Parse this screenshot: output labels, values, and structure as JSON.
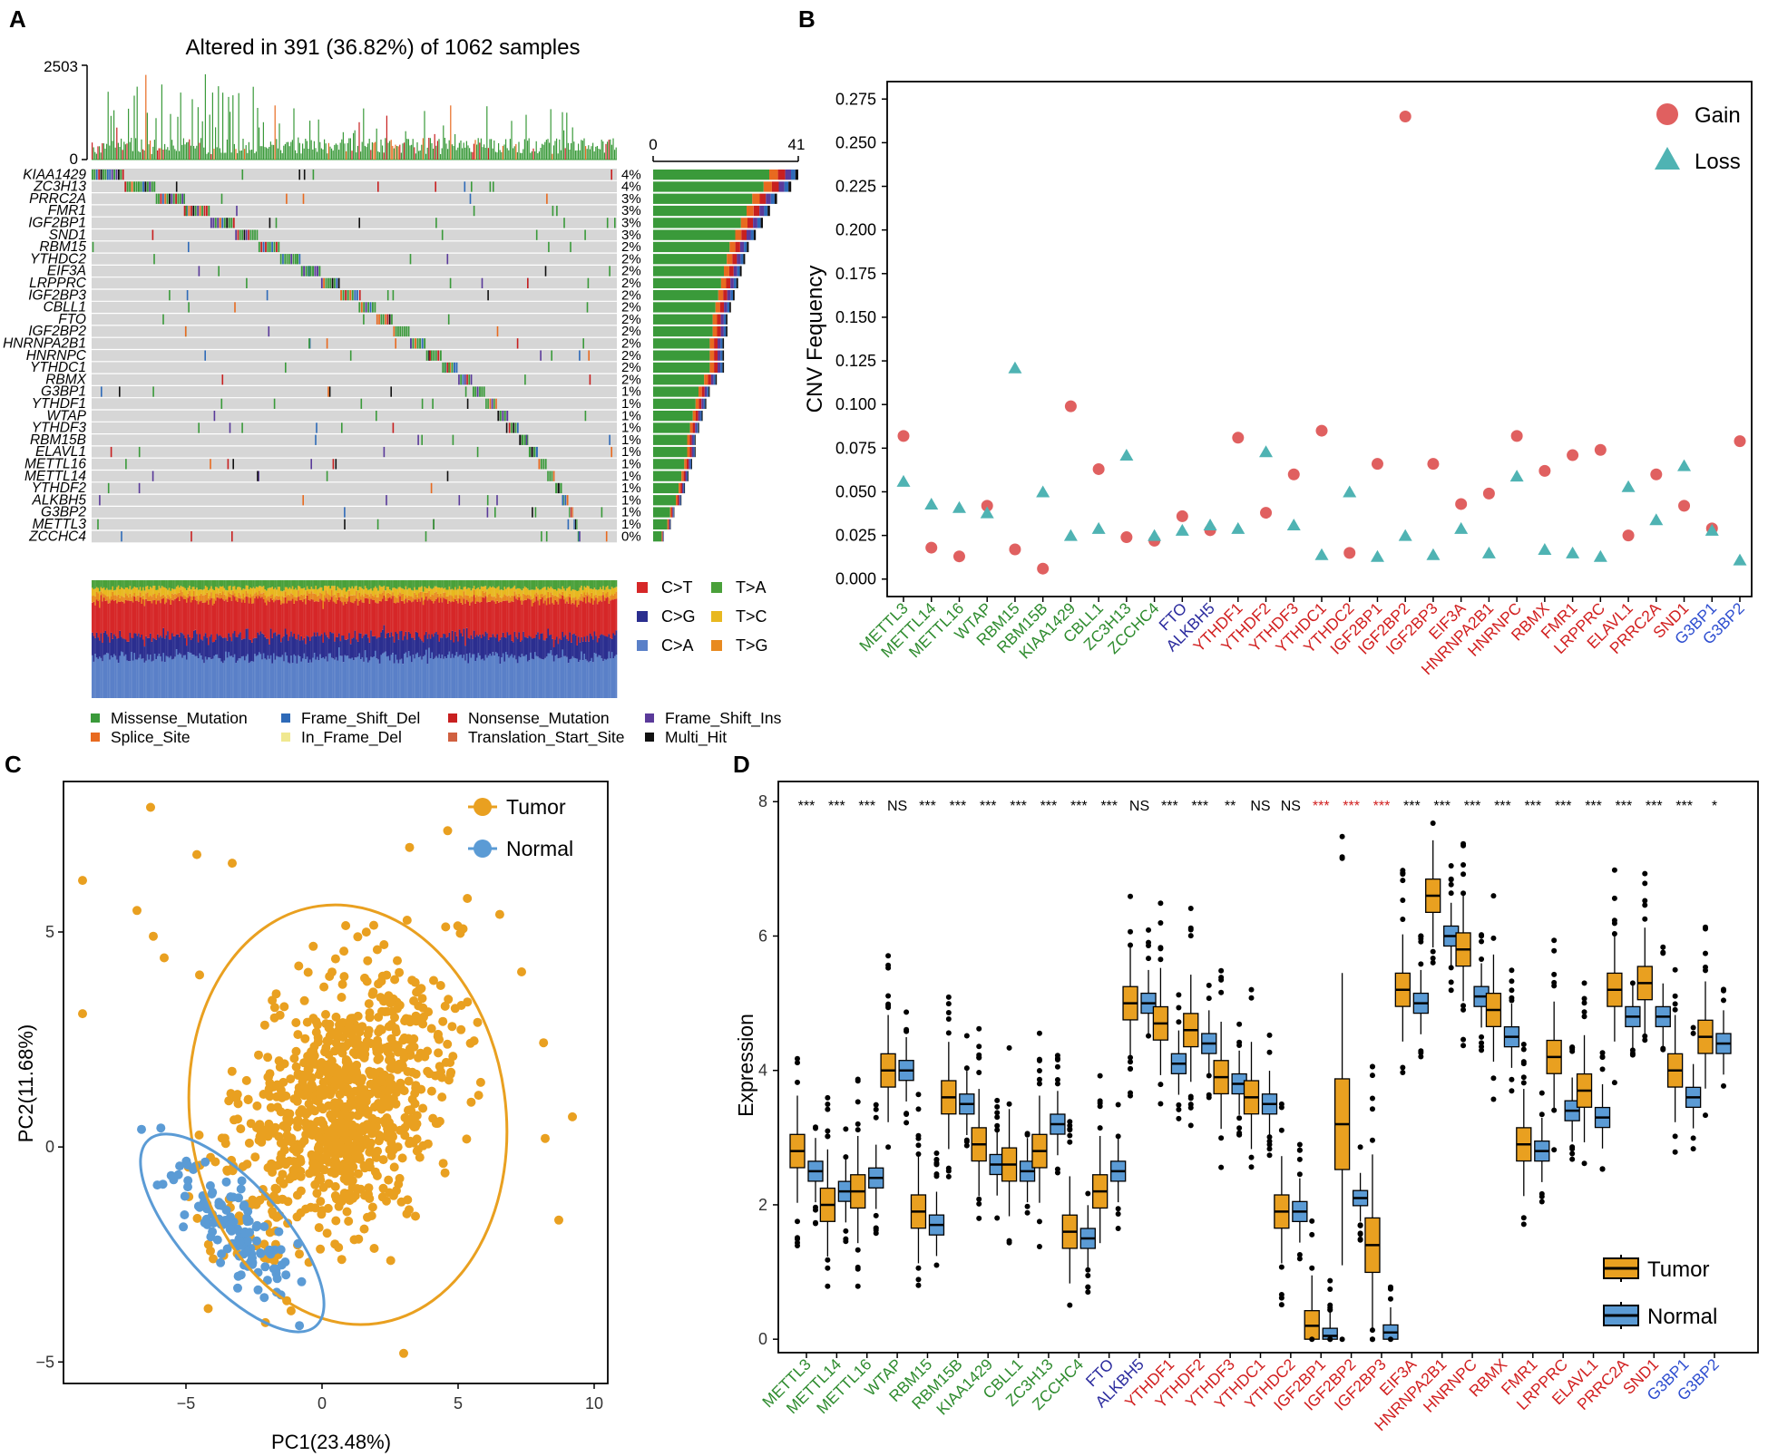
{
  "panels": {
    "a": "A",
    "b": "B",
    "c": "C",
    "d": "D"
  },
  "colors": {
    "green": "#2e8b2e",
    "blue_label": "#2b2b9e",
    "red_label": "#d11f1f",
    "blue_label2": "#2f4fd0",
    "tumor": "#e9a020",
    "normal": "#5b9bd5",
    "gain": "#e06060",
    "loss": "#4fb3b3"
  },
  "chart_data": [
    {
      "panel": "A",
      "type": "oncoplot",
      "title": "Altered in 391 (36.82%) of 1062 samples",
      "tmb_axis": {
        "max_label": "2503",
        "min_label": "0"
      },
      "count_axis": {
        "min_label": "0",
        "max_label": "41",
        "max": 41
      },
      "genes": [
        "KIAA1429",
        "ZC3H13",
        "PRRC2A",
        "FMR1",
        "IGF2BP1",
        "SND1",
        "RBM15",
        "YTHDC2",
        "EIF3A",
        "LRPPRC",
        "IGF2BP3",
        "CBLL1",
        "FTO",
        "IGF2BP2",
        "HNRNPA2B1",
        "HNRNPC",
        "YTHDC1",
        "RBMX",
        "G3BP1",
        "YTHDF1",
        "WTAP",
        "YTHDF3",
        "RBM15B",
        "ELAVL1",
        "METTL16",
        "METTL14",
        "YTHDF2",
        "ALKBH5",
        "G3BP2",
        "METTL3",
        "ZCCHC4"
      ],
      "percent": [
        "4%",
        "4%",
        "3%",
        "3%",
        "3%",
        "3%",
        "2%",
        "2%",
        "2%",
        "2%",
        "2%",
        "2%",
        "2%",
        "2%",
        "2%",
        "2%",
        "2%",
        "2%",
        "1%",
        "1%",
        "1%",
        "1%",
        "1%",
        "1%",
        "1%",
        "1%",
        "1%",
        "1%",
        "1%",
        "1%",
        "0%"
      ],
      "counts": [
        41,
        39,
        35,
        33,
        31,
        29,
        27,
        26,
        25,
        24,
        23,
        22,
        21,
        21,
        20,
        20,
        20,
        18,
        16,
        15,
        14,
        13,
        12,
        12,
        11,
        10,
        9,
        8,
        6,
        5,
        3
      ],
      "titv_legend": [
        {
          "label": "C>T",
          "color": "#d62728"
        },
        {
          "label": "T>A",
          "color": "#4aa03a"
        },
        {
          "label": "C>G",
          "color": "#2b2e8f"
        },
        {
          "label": "T>C",
          "color": "#e8b820"
        },
        {
          "label": "C>A",
          "color": "#5a80c8"
        },
        {
          "label": "T>G",
          "color": "#e88a20"
        }
      ],
      "variant_legend": [
        {
          "label": "Missense_Mutation",
          "color": "#3a9a3a"
        },
        {
          "label": "Frame_Shift_Del",
          "color": "#2e6ab8"
        },
        {
          "label": "Nonsense_Mutation",
          "color": "#c82020"
        },
        {
          "label": "Frame_Shift_Ins",
          "color": "#5a3a9a"
        },
        {
          "label": "Splice_Site",
          "color": "#e86a20"
        },
        {
          "label": "In_Frame_Del",
          "color": "#f0e890"
        },
        {
          "label": "Translation_Start_Site",
          "color": "#d06040"
        },
        {
          "label": "Multi_Hit",
          "color": "#111111"
        }
      ]
    },
    {
      "panel": "B",
      "type": "scatter",
      "ylabel": "CNV Fequency",
      "ylim": [
        -0.01,
        0.285
      ],
      "yticks": [
        "0.000",
        "0.025",
        "0.050",
        "0.075",
        "0.100",
        "0.125",
        "0.150",
        "0.175",
        "0.200",
        "0.225",
        "0.250",
        "0.275"
      ],
      "categories": [
        "METTL3",
        "METTL14",
        "METTL16",
        "WTAP",
        "RBM15",
        "RBM15B",
        "KIAA1429",
        "CBLL1",
        "ZC3H13",
        "ZCCHC4",
        "FTO",
        "ALKBH5",
        "YTHDF1",
        "YTHDF2",
        "YTHDF3",
        "YTHDC1",
        "YTHDC2",
        "IGF2BP1",
        "IGF2BP2",
        "IGF2BP3",
        "EIF3A",
        "HNRNPA2B1",
        "HNRNPC",
        "RBMX",
        "FMR1",
        "LRPPRC",
        "ELAVL1",
        "PRRC2A",
        "SND1",
        "G3BP1",
        "G3BP2"
      ],
      "label_groups": [
        "green",
        "green",
        "green",
        "green",
        "green",
        "green",
        "green",
        "green",
        "green",
        "green",
        "blue_label",
        "blue_label",
        "red_label",
        "red_label",
        "red_label",
        "red_label",
        "red_label",
        "red_label",
        "red_label",
        "red_label",
        "red_label",
        "red_label",
        "red_label",
        "red_label",
        "red_label",
        "red_label",
        "red_label",
        "red_label",
        "red_label",
        "blue_label2",
        "blue_label2"
      ],
      "series": [
        {
          "name": "Gain",
          "values": [
            0.082,
            0.018,
            0.013,
            0.042,
            0.017,
            0.006,
            0.099,
            0.063,
            0.024,
            0.022,
            0.036,
            0.028,
            0.081,
            0.038,
            0.06,
            0.085,
            0.015,
            0.066,
            0.265,
            0.066,
            0.043,
            0.049,
            0.082,
            0.062,
            0.071,
            0.074,
            0.025,
            0.06,
            0.042,
            0.029,
            0.079
          ]
        },
        {
          "name": "Loss",
          "values": [
            0.056,
            0.043,
            0.041,
            0.038,
            0.121,
            0.05,
            0.025,
            0.029,
            0.071,
            0.025,
            0.028,
            0.031,
            0.029,
            0.073,
            0.031,
            0.014,
            0.05,
            0.013,
            0.025,
            0.014,
            0.029,
            0.015,
            0.059,
            0.017,
            0.015,
            0.013,
            0.053,
            0.034,
            0.065,
            0.028,
            0.011
          ]
        }
      ],
      "legend": [
        "Gain",
        "Loss"
      ]
    },
    {
      "panel": "C",
      "type": "scatter",
      "xlabel": "PC1(23.48%)",
      "ylabel": "PC2(11.68%)",
      "xlim": [
        -9.5,
        10.5
      ],
      "ylim": [
        -5.5,
        8.5
      ],
      "xticks": [
        "−5",
        "0",
        "5",
        "10"
      ],
      "yticks": [
        "−5",
        "0",
        "5"
      ],
      "legend": [
        "Tumor",
        "Normal"
      ],
      "series": [
        {
          "name": "Tumor",
          "center": [
            1.0,
            0.8
          ],
          "ellipse_note": "95% normal ellipse",
          "count": 1062
        },
        {
          "name": "Normal",
          "center": [
            -3.2,
            -2.0
          ],
          "count": 113
        }
      ]
    },
    {
      "panel": "D",
      "type": "boxplot",
      "ylabel": "Expression",
      "ylim": [
        -0.2,
        8.3
      ],
      "yticks": [
        "0",
        "2",
        "4",
        "6",
        "8"
      ],
      "categories": [
        "METTL3",
        "METTL14",
        "METTL16",
        "WTAP",
        "RBM15",
        "RBM15B",
        "KIAA1429",
        "CBLL1",
        "ZC3H13",
        "ZCCHC4",
        "FTO",
        "ALKBH5",
        "YTHDF1",
        "YTHDF2",
        "YTHDF3",
        "YTHDC1",
        "YTHDC2",
        "IGF2BP1",
        "IGF2BP2",
        "IGF2BP3",
        "EIF3A",
        "HNRNPA2B1",
        "HNRNPC",
        "RBMX",
        "FMR1",
        "LRPPRC",
        "ELAVL1",
        "PRRC2A",
        "SND1",
        "G3BP1",
        "G3BP2"
      ],
      "significance": [
        "***",
        "***",
        "***",
        "NS",
        "***",
        "***",
        "***",
        "***",
        "***",
        "***",
        "***",
        "NS",
        "***",
        "***",
        "**",
        "NS",
        "NS",
        "***",
        "***",
        "***",
        "***",
        "***",
        "***",
        "***",
        "***",
        "***",
        "***",
        "***",
        "***",
        "***",
        "*"
      ],
      "significance_red": [
        17,
        18,
        19
      ],
      "tumor_median": [
        2.8,
        2.0,
        2.2,
        4.0,
        1.9,
        3.6,
        2.9,
        2.6,
        2.8,
        1.6,
        2.2,
        5.0,
        4.7,
        4.6,
        3.9,
        3.6,
        1.9,
        0.2,
        3.2,
        1.4,
        5.2,
        6.6,
        5.8,
        4.9,
        2.9,
        4.2,
        3.7,
        5.2,
        5.3,
        4.0,
        4.5
      ],
      "normal_median": [
        2.5,
        2.2,
        2.4,
        4.0,
        1.7,
        3.5,
        2.6,
        2.5,
        3.2,
        1.5,
        2.5,
        5.0,
        4.1,
        4.4,
        3.8,
        3.5,
        1.9,
        0.05,
        2.1,
        0.1,
        5.0,
        6.0,
        5.1,
        4.5,
        2.8,
        3.4,
        3.3,
        4.8,
        4.8,
        3.6,
        4.4
      ],
      "legend": [
        "Tumor",
        "Normal"
      ]
    }
  ]
}
